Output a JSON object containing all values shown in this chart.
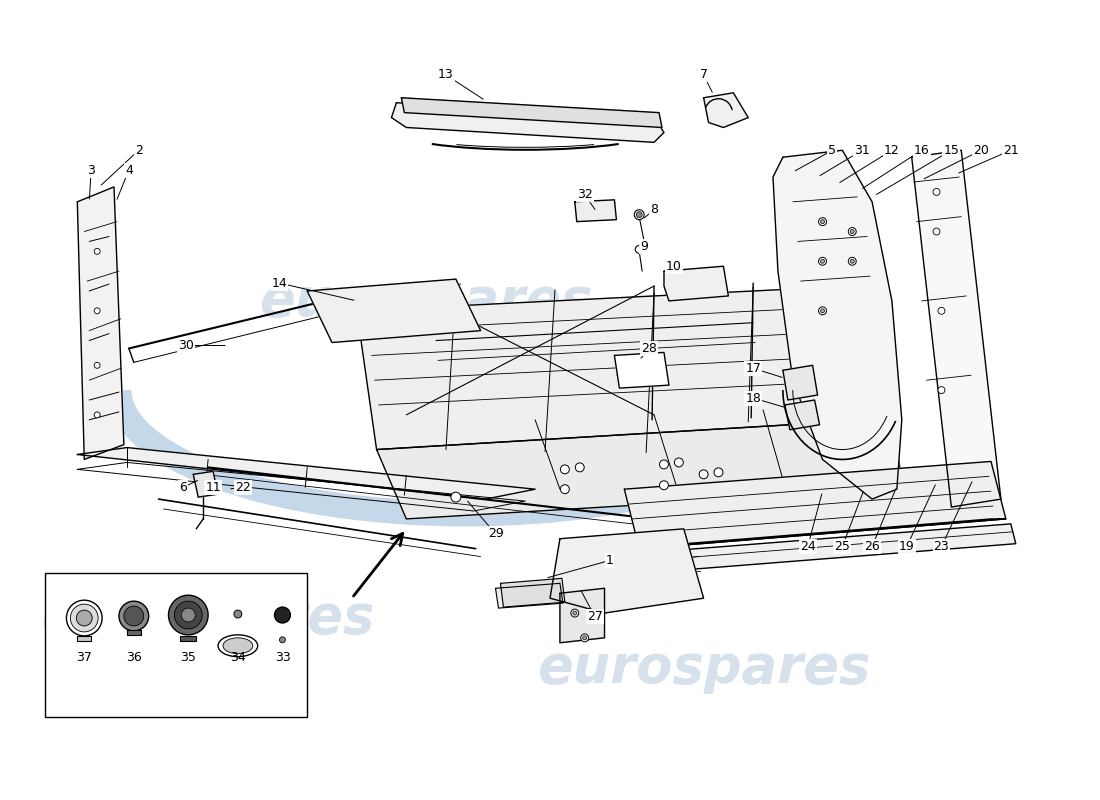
{
  "background_color": "#ffffff",
  "line_color": "#000000",
  "watermark_text": "eurospares",
  "watermark_color": "#c5d5e5",
  "fig_width": 11.0,
  "fig_height": 8.0,
  "dpi": 100
}
